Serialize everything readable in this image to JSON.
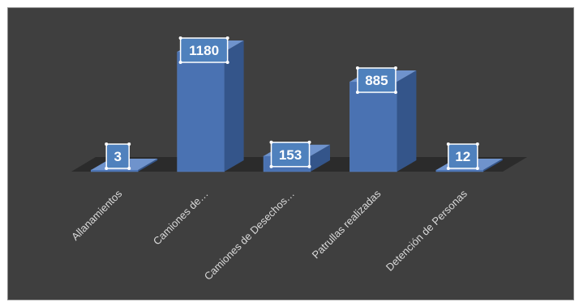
{
  "chart_data": {
    "type": "bar",
    "style": "3d-column",
    "categories": [
      "Allanamientos",
      "Camiones de…",
      "Camiones de Desechos…",
      "Patrullas realizadas",
      "Detención de Personas"
    ],
    "values": [
      3,
      1180,
      153,
      885,
      12
    ],
    "value_labels": [
      "3",
      "1180",
      "153",
      "885",
      "12"
    ],
    "title": "",
    "xlabel": "",
    "ylabel": "",
    "ylim": [
      0,
      1180
    ],
    "grid": false,
    "legend": "none",
    "colors": {
      "background": "#3f3f3f",
      "bar_front": "#4a72b2",
      "bar_side": "#34558a",
      "bar_top": "#6f93cc",
      "floor": "#2b2b2b",
      "label_box": "#4f81bd",
      "text": "#d9d9d9"
    }
  }
}
